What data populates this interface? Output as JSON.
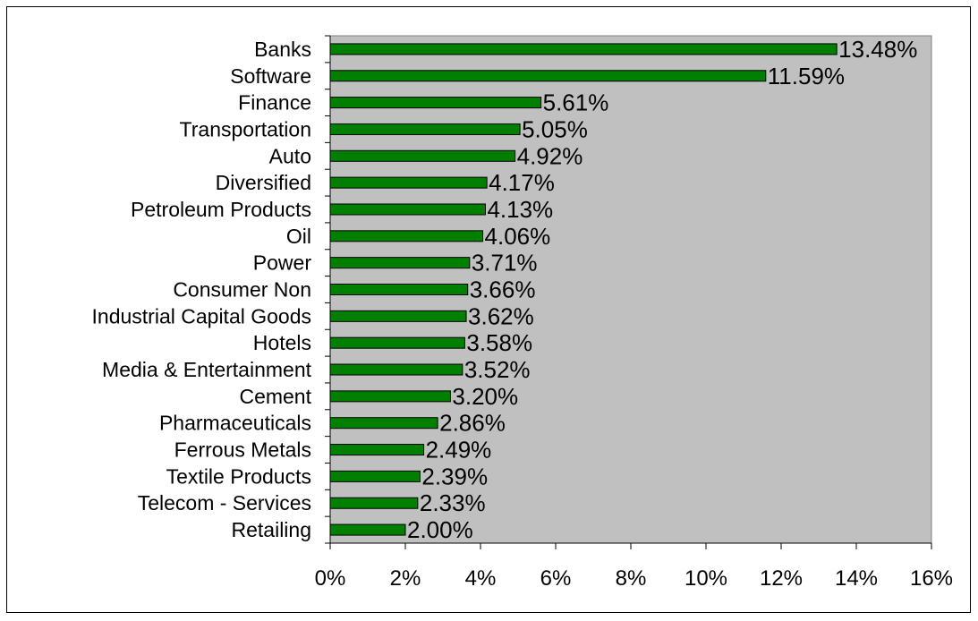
{
  "chart_data": {
    "type": "bar",
    "orientation": "horizontal",
    "categories": [
      "Banks",
      "Software",
      "Finance",
      "Transportation",
      "Auto",
      "Diversified",
      "Petroleum Products",
      "Oil",
      "Power",
      "Consumer Non",
      "Industrial Capital Goods",
      "Hotels",
      "Media & Entertainment",
      "Cement",
      "Pharmaceuticals",
      "Ferrous Metals",
      "Textile Products",
      "Telecom - Services",
      "Retailing"
    ],
    "values": [
      13.48,
      11.59,
      5.61,
      5.05,
      4.92,
      4.17,
      4.13,
      4.06,
      3.71,
      3.66,
      3.62,
      3.58,
      3.52,
      3.2,
      2.86,
      2.49,
      2.39,
      2.33,
      2.0
    ],
    "value_labels": [
      "13.48%",
      "11.59%",
      "5.61%",
      "5.05%",
      "4.92%",
      "4.17%",
      "4.13%",
      "4.06%",
      "3.71%",
      "3.66%",
      "3.62%",
      "3.58%",
      "3.52%",
      "3.20%",
      "2.86%",
      "2.49%",
      "2.39%",
      "2.33%",
      "2.00%"
    ],
    "xlim": [
      0,
      16
    ],
    "x_ticks": [
      0,
      2,
      4,
      6,
      8,
      10,
      12,
      14,
      16
    ],
    "x_tick_labels": [
      "0%",
      "2%",
      "4%",
      "6%",
      "8%",
      "10%",
      "12%",
      "14%",
      "16%"
    ],
    "title": "",
    "xlabel": "",
    "ylabel": "",
    "grid": false,
    "legend": "none",
    "colors": {
      "bar": "#007f00",
      "plot_background": "#c0c0c0",
      "axis": "#000000"
    }
  }
}
